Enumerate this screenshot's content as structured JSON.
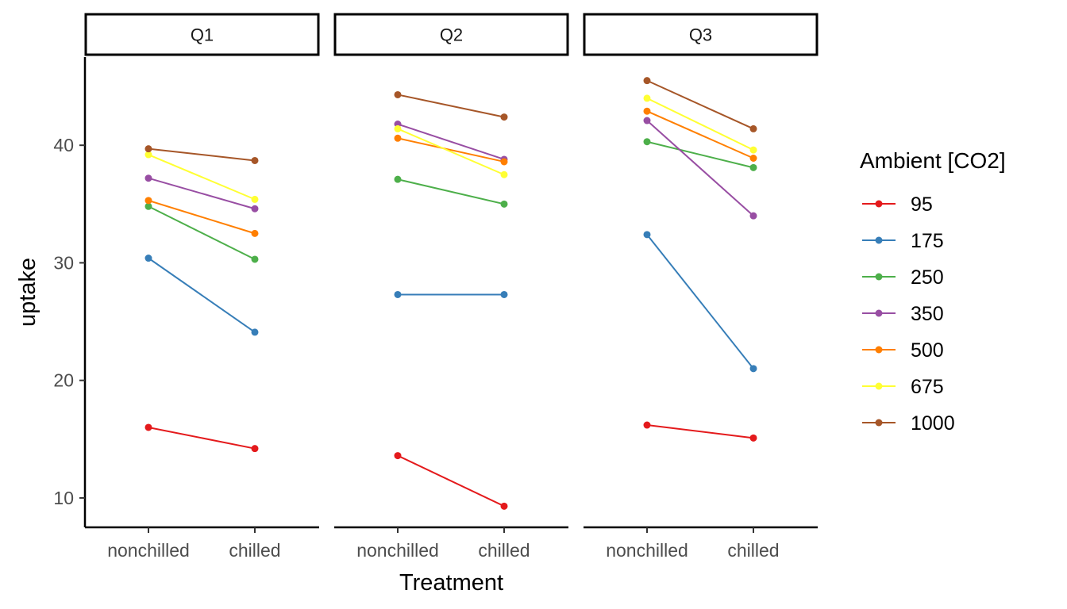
{
  "chart_data": {
    "type": "line",
    "xlabel": "Treatment",
    "ylabel": "uptake",
    "ylim": [
      7.5,
      47.5
    ],
    "yticks": [
      "10",
      "20",
      "30",
      "40"
    ],
    "categories": [
      "nonchilled",
      "chilled"
    ],
    "grid": false,
    "legend": {
      "title": "Ambient [CO2]",
      "placement": "right",
      "entries": [
        {
          "name": "95",
          "color": "#e41a1c"
        },
        {
          "name": "175",
          "color": "#377eb8"
        },
        {
          "name": "250",
          "color": "#4daf4a"
        },
        {
          "name": "350",
          "color": "#984ea3"
        },
        {
          "name": "500",
          "color": "#ff7f00"
        },
        {
          "name": "675",
          "color": "#ffff33"
        },
        {
          "name": "1000",
          "color": "#a65628"
        }
      ]
    },
    "panels": [
      {
        "label": "Q1",
        "series": [
          {
            "name": "95",
            "values": [
              16.0,
              14.2
            ]
          },
          {
            "name": "175",
            "values": [
              30.4,
              24.1
            ]
          },
          {
            "name": "250",
            "values": [
              34.8,
              30.3
            ]
          },
          {
            "name": "350",
            "values": [
              37.2,
              34.6
            ]
          },
          {
            "name": "500",
            "values": [
              35.3,
              32.5
            ]
          },
          {
            "name": "675",
            "values": [
              39.2,
              35.4
            ]
          },
          {
            "name": "1000",
            "values": [
              39.7,
              38.7
            ]
          }
        ]
      },
      {
        "label": "Q2",
        "series": [
          {
            "name": "95",
            "values": [
              13.6,
              9.3
            ]
          },
          {
            "name": "175",
            "values": [
              27.3,
              27.3
            ]
          },
          {
            "name": "250",
            "values": [
              37.1,
              35.0
            ]
          },
          {
            "name": "350",
            "values": [
              41.8,
              38.8
            ]
          },
          {
            "name": "500",
            "values": [
              40.6,
              38.6
            ]
          },
          {
            "name": "675",
            "values": [
              41.4,
              37.5
            ]
          },
          {
            "name": "1000",
            "values": [
              44.3,
              42.4
            ]
          }
        ]
      },
      {
        "label": "Q3",
        "series": [
          {
            "name": "95",
            "values": [
              16.2,
              15.1
            ]
          },
          {
            "name": "175",
            "values": [
              32.4,
              21.0
            ]
          },
          {
            "name": "250",
            "values": [
              40.3,
              38.1
            ]
          },
          {
            "name": "350",
            "values": [
              42.1,
              34.0
            ]
          },
          {
            "name": "500",
            "values": [
              42.9,
              38.9
            ]
          },
          {
            "name": "675",
            "values": [
              44.0,
              39.6
            ]
          },
          {
            "name": "1000",
            "values": [
              45.5,
              41.4
            ]
          }
        ]
      }
    ]
  }
}
